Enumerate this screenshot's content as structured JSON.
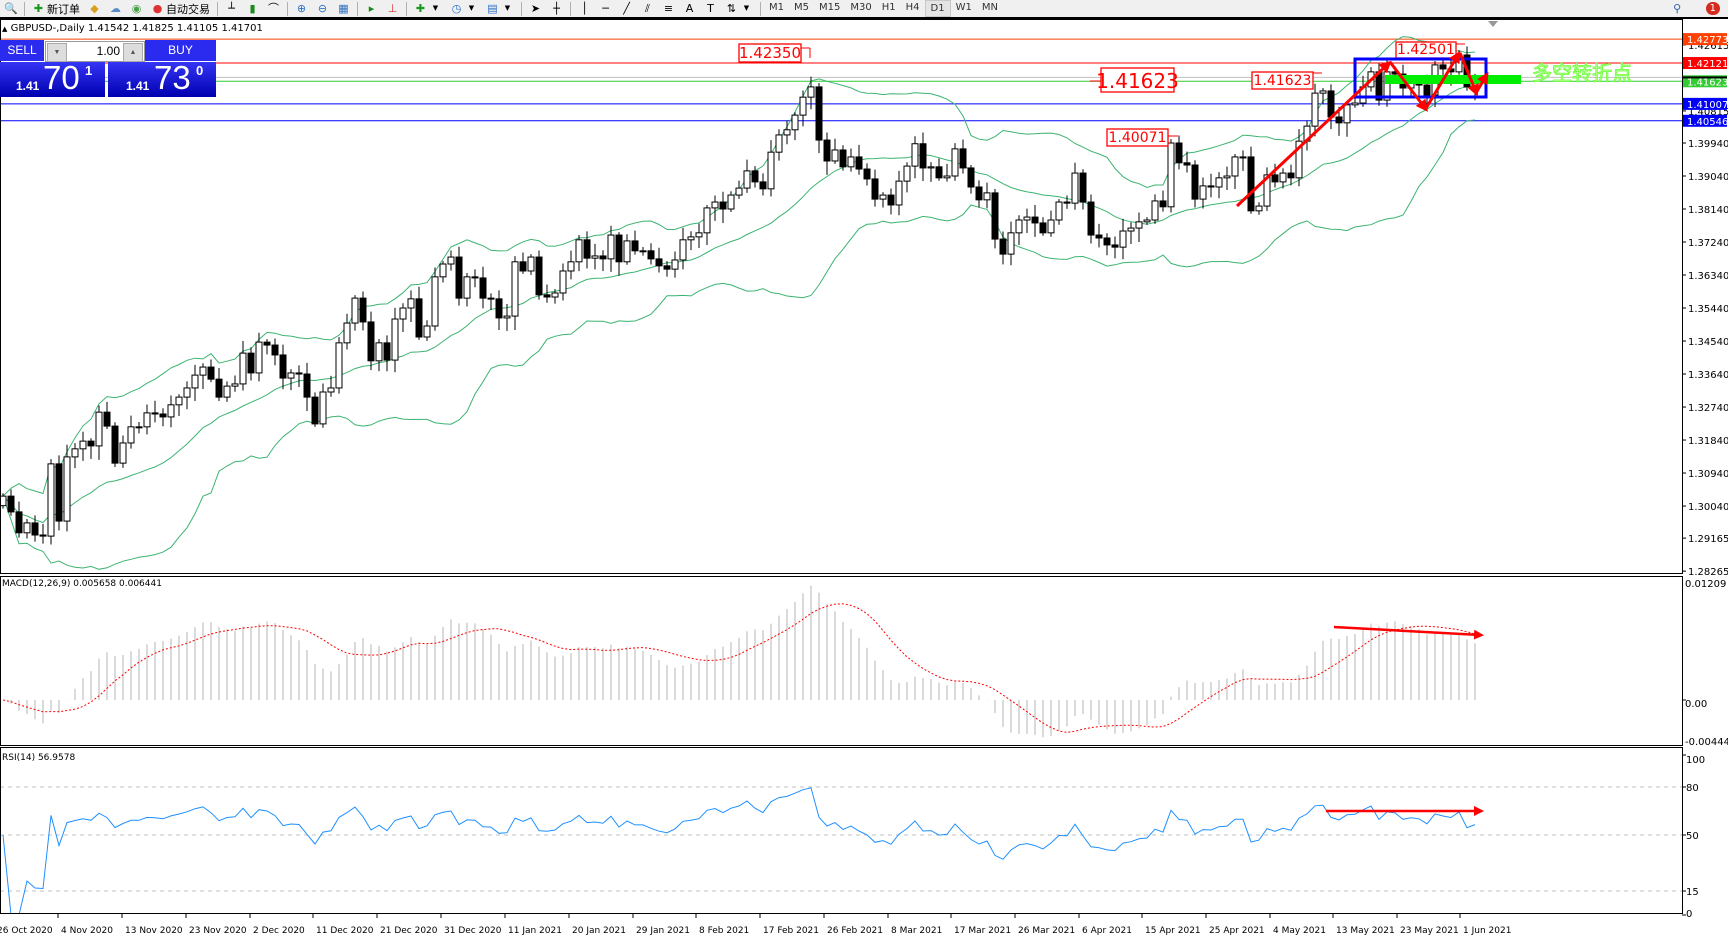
{
  "toolbar": {
    "new_order_label": "新订单",
    "auto_trading_label": "自动交易",
    "timeframes": [
      "M1",
      "M5",
      "M15",
      "M30",
      "H1",
      "H4",
      "D1",
      "W1",
      "MN"
    ],
    "active_timeframe": "D1",
    "notification_count": "1",
    "icons": [
      "search-icon",
      "zoom-in-icon",
      "zoom-out-icon",
      "cursor-icon",
      "crosshair-icon",
      "text-icon",
      "clock-icon"
    ]
  },
  "chart": {
    "title": "GBPUSD-,Daily  1.41542 1.41825 1.41105 1.41701",
    "symbol": "GBPUSD-",
    "period": "Daily",
    "ohlc": {
      "open": 1.41542,
      "high": 1.41825,
      "low": 1.41105,
      "close": 1.41701
    }
  },
  "one_click": {
    "sell_label": "SELL",
    "buy_label": "BUY",
    "lot": "1.00",
    "sell_price": {
      "prefix": "1.41",
      "big": "70",
      "sup": "1"
    },
    "buy_price": {
      "prefix": "1.41",
      "big": "73",
      "sup": "0"
    }
  },
  "price_axis": {
    "ticks": [
      "1.42615",
      "1.40815",
      "1.39940",
      "1.39040",
      "1.38140",
      "1.37240",
      "1.36340",
      "1.35440",
      "1.34540",
      "1.33640",
      "1.32740",
      "1.31840",
      "1.30940",
      "1.30040",
      "1.29165",
      "1.28265"
    ],
    "level_labels": [
      {
        "value": "1.42773",
        "color": "#ff4000"
      },
      {
        "value": "1.42121",
        "color": "#ff0000"
      },
      {
        "value": "1.41623",
        "color": "#33cc33"
      },
      {
        "value": "1.41007",
        "color": "#0000ff"
      },
      {
        "value": "1.40546",
        "color": "#0000ff"
      }
    ]
  },
  "annotations": {
    "labels": [
      "1.42350",
      "1.41623",
      "1.41623",
      "1.40071",
      "1.42501"
    ],
    "chinese_note": "多空转折点",
    "colors": {
      "label": "#ff0000",
      "box": "#0000ff",
      "bar": "#00ee00",
      "arrow": "#ff0000",
      "note": "#66ff33"
    }
  },
  "macd": {
    "header": "MACD(12,26,9) 0.005658 0.006441",
    "scale": [
      "0.01209",
      "0.00",
      "-0.004446"
    ],
    "colors": {
      "histogram": "#c0c0c0",
      "signal": "#ff0000"
    }
  },
  "rsi": {
    "header": "RSI(14) 56.9578",
    "scale": [
      "100",
      "80",
      "50",
      "15",
      "0"
    ],
    "color": "#1e90ff"
  },
  "time_axis": [
    "26 Oct 2020",
    "4 Nov 2020",
    "13 Nov 2020",
    "23 Nov 2020",
    "2 Dec 2020",
    "11 Dec 2020",
    "21 Dec 2020",
    "31 Dec 2020",
    "11 Jan 2021",
    "20 Jan 2021",
    "29 Jan 2021",
    "8 Feb 2021",
    "17 Feb 2021",
    "26 Feb 2021",
    "8 Mar 2021",
    "17 Mar 2021",
    "26 Mar 2021",
    "6 Apr 2021",
    "15 Apr 2021",
    "25 Apr 2021",
    "4 May 2021",
    "13 May 2021",
    "23 May 2021",
    "1 Jun 2021"
  ],
  "chart_data": {
    "type": "candlestick",
    "indicators": [
      "Bollinger Bands(20,2)",
      "MACD(12,26,9)",
      "RSI(14)"
    ],
    "price_range": [
      1.28265,
      1.43
    ],
    "closes": [
      1.3031,
      1.2988,
      1.2931,
      1.2958,
      1.2925,
      1.2922,
      1.3119,
      1.2963,
      1.3138,
      1.316,
      1.3181,
      1.3168,
      1.326,
      1.3222,
      1.3121,
      1.3176,
      1.322,
      1.322,
      1.3258,
      1.3255,
      1.3247,
      1.328,
      1.3301,
      1.3326,
      1.3361,
      1.3383,
      1.335,
      1.3301,
      1.3331,
      1.3337,
      1.3421,
      1.3367,
      1.3451,
      1.3443,
      1.3416,
      1.3353,
      1.3367,
      1.3364,
      1.3301,
      1.3228,
      1.3315,
      1.3326,
      1.3449,
      1.3503,
      1.3571,
      1.3506,
      1.34,
      1.3449,
      1.3402,
      1.3514,
      1.3544,
      1.3569,
      1.3465,
      1.3495,
      1.3629,
      1.3664,
      1.3683,
      1.3571,
      1.3629,
      1.3626,
      1.3571,
      1.3569,
      1.3517,
      1.3522,
      1.367,
      1.3645,
      1.3683,
      1.358,
      1.3574,
      1.3585,
      1.3645,
      1.367,
      1.373,
      1.368,
      1.3686,
      1.3678,
      1.3743,
      1.367,
      1.3727,
      1.37,
      1.37,
      1.3678,
      1.3659,
      1.365,
      1.3675,
      1.373,
      1.3738,
      1.3749,
      1.3817,
      1.3833,
      1.3814,
      1.3852,
      1.3871,
      1.3918,
      1.3888,
      1.3869,
      1.3969,
      1.4016,
      1.403,
      1.407,
      1.4119,
      1.4147,
      1.4002,
      1.3945,
      1.3975,
      1.3929,
      1.3956,
      1.3923,
      1.3896,
      1.3841,
      1.3852,
      1.3825,
      1.389,
      1.3931,
      1.3992,
      1.3926,
      1.3929,
      1.3899,
      1.3904,
      1.3978,
      1.3926,
      1.3874,
      1.3839,
      1.3858,
      1.3732,
      1.3691,
      1.3749,
      1.3784,
      1.3792,
      1.3776,
      1.3749,
      1.3784,
      1.3833,
      1.383,
      1.3912,
      1.3833,
      1.3743,
      1.3735,
      1.3716,
      1.371,
      1.3754,
      1.3762,
      1.3779,
      1.3784,
      1.3836,
      1.382,
      1.3994,
      1.394,
      1.3934,
      1.3841,
      1.3877,
      1.3874,
      1.3899,
      1.3904,
      1.3956,
      1.3956,
      1.3809,
      1.3822,
      1.3907,
      1.3888,
      1.3912,
      1.3899,
      1.3999,
      1.404,
      1.413,
      1.4136,
      1.4065,
      1.4049,
      1.4098,
      1.4103,
      1.4147,
      1.4188,
      1.4111,
      1.4188,
      1.4182,
      1.4144,
      1.4158,
      1.4152,
      1.4125,
      1.4207,
      1.4196,
      1.4188,
      1.4234,
      1.4147,
      1.41701
    ],
    "first_open": 1.3005,
    "last_high": 1.41825,
    "last_low": 1.41105,
    "horizontal_levels": [
      1.42773,
      1.42121,
      1.41623,
      1.41007,
      1.40546
    ]
  }
}
